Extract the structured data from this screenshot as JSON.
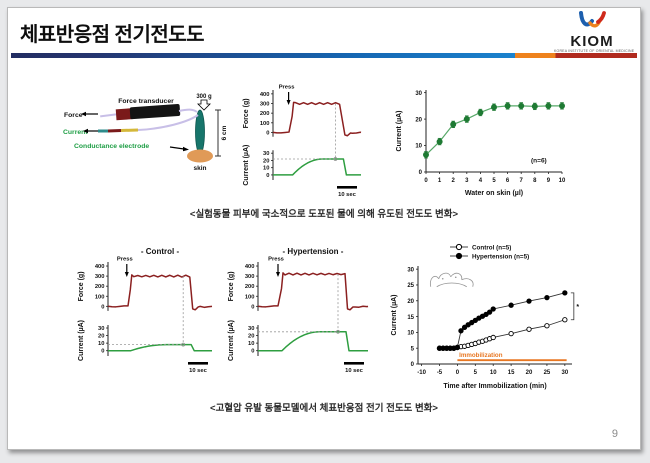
{
  "slide": {
    "title": "체표반응점 전기전도도",
    "page_number": "9",
    "captions": {
      "top": "<실험동물 피부에 국소적으로 도포된 물에 의해 유도된 전도도 변화>",
      "bottom": "<고혈압 유발 동물모델에서 체표반응점 전기 전도도 변화>"
    },
    "logo": {
      "name": "KIOM",
      "subtext": "KOREA INSTITUTE OF ORIENTAL MEDICINE"
    }
  },
  "colors": {
    "accent_navy": "#222d62",
    "accent_blue": "#1b82cd",
    "accent_orange": "#ee821d",
    "accent_red": "#b02a1e",
    "force_trace": "#8b2020",
    "current_trace": "#2e9e40",
    "marker_green": "#1e7a33",
    "marker_line_green": "#57a868",
    "immobilization_orange": "#e87722",
    "electrode_teal": "#17756b",
    "skin_orange": "#e09a57",
    "wire_lavender": "#c8bfe7",
    "wire_yellow": "#d4b83a",
    "wire_maroon": "#7a1a1a"
  },
  "setup_diagram": {
    "weight_label": "300 g",
    "transducer_label": "Force transducer",
    "force_label": "Force",
    "current_label": "Current",
    "electrode_label": "Conductance electrode",
    "skin_label": "skin",
    "height_label": "6 cm"
  },
  "chart_data": [
    {
      "id": "press_trace_water",
      "type": "line",
      "title": "",
      "annotation": "Press",
      "scale_bar": "10 sec",
      "panels": [
        {
          "ylabel": "Force (g)",
          "yticks": [
            0,
            100,
            200,
            300,
            400
          ],
          "ylim": [
            -45,
            440
          ],
          "baseline": 0,
          "plateau": 300,
          "color": "#8b2020"
        },
        {
          "ylabel": "Current (µA)",
          "yticks": [
            0,
            10,
            20,
            30
          ],
          "ylim": [
            -7,
            34
          ],
          "baseline": 0,
          "plateau": 22,
          "color": "#2e9e40"
        }
      ]
    },
    {
      "id": "water_dose",
      "type": "scatter",
      "x": [
        0,
        1,
        2,
        3,
        4,
        5,
        6,
        7,
        8,
        9,
        10
      ],
      "values": [
        6.5,
        11.5,
        18,
        20,
        22.5,
        24.5,
        25,
        25,
        24.8,
        25,
        25
      ],
      "error": 1.2,
      "xlabel": "Water on skin (µl)",
      "ylabel": "Current (µA)",
      "yticks": [
        0,
        10,
        20,
        30
      ],
      "ylim": [
        0,
        30
      ],
      "xlim": [
        0,
        10
      ],
      "annotation": "(n=6)"
    },
    {
      "id": "press_trace_control",
      "type": "line",
      "title": "- Control -",
      "annotation": "Press",
      "scale_bar": "10 sec",
      "panels": [
        {
          "ylabel": "Force (g)",
          "yticks": [
            0,
            100,
            200,
            300,
            400
          ],
          "ylim": [
            -45,
            440
          ],
          "baseline": 0,
          "plateau": 300,
          "color": "#8b2020"
        },
        {
          "ylabel": "Current (µA)",
          "yticks": [
            0,
            10,
            20,
            30
          ],
          "ylim": [
            -7,
            34
          ],
          "baseline": 0,
          "plateau": 8,
          "color": "#2e9e40"
        }
      ]
    },
    {
      "id": "press_trace_hypertension",
      "type": "line",
      "title": "- Hypertension -",
      "annotation": "Press",
      "scale_bar": "10 sec",
      "panels": [
        {
          "ylabel": "Force (g)",
          "yticks": [
            0,
            100,
            200,
            300,
            400
          ],
          "ylim": [
            -45,
            440
          ],
          "baseline": 0,
          "plateau": 320,
          "color": "#8b2020"
        },
        {
          "ylabel": "Current (µA)",
          "yticks": [
            0,
            10,
            20,
            30
          ],
          "ylim": [
            -7,
            34
          ],
          "baseline": 0,
          "plateau": 25,
          "color": "#2e9e40"
        }
      ]
    },
    {
      "id": "immobilization_time_course",
      "type": "line",
      "x": [
        -5,
        -4,
        -3,
        -2,
        -1,
        0,
        1,
        2,
        3,
        4,
        5,
        6,
        7,
        8,
        9,
        10,
        15,
        20,
        25,
        30
      ],
      "series": [
        {
          "name": "Control (n=5)",
          "marker": "open",
          "values": [
            5,
            5,
            5,
            5,
            5,
            5.2,
            5.5,
            5.6,
            5.9,
            6.2,
            6.5,
            6.9,
            7.2,
            7.6,
            8,
            8.4,
            9.6,
            11,
            12.1,
            14
          ]
        },
        {
          "name": "Hypertension (n=5)",
          "marker": "filled",
          "values": [
            5,
            5,
            5,
            5,
            5,
            5.3,
            10.5,
            11.6,
            12.4,
            13.1,
            13.8,
            14.5,
            15.1,
            15.7,
            16.4,
            17.4,
            18.6,
            19.9,
            21,
            22.5
          ]
        }
      ],
      "xlabel": "Time after Immobilization (min)",
      "ylabel": "Current (µA)",
      "xticks": [
        -10,
        -5,
        0,
        5,
        10,
        15,
        20,
        25,
        30
      ],
      "yticks": [
        0,
        5,
        10,
        15,
        20,
        25,
        30
      ],
      "xlim": [
        -11,
        32
      ],
      "ylim": [
        0,
        31
      ],
      "immobilization_label": "Immobilization",
      "immobilization_span": [
        0,
        30
      ],
      "significance_label": "*",
      "legend_position": "top"
    }
  ]
}
